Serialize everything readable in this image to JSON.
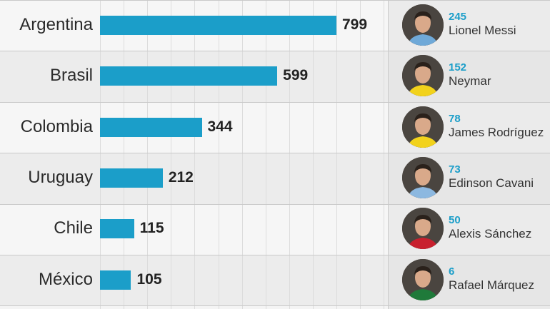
{
  "chart_data": {
    "type": "bar",
    "orientation": "horizontal",
    "categories": [
      "Argentina",
      "Brasil",
      "Colombia",
      "Uruguay",
      "Chile",
      "México"
    ],
    "values": [
      799,
      599,
      344,
      212,
      115,
      105
    ],
    "xlim": [
      0,
      1000
    ],
    "grid": true,
    "bar_color": "#1b9ec9",
    "players": [
      {
        "goals": "245",
        "name": "Lionel Messi",
        "shirt_color": "#6fa9d8"
      },
      {
        "goals": "152",
        "name": "Neymar",
        "shirt_color": "#f2d21b"
      },
      {
        "goals": "78",
        "name": "James Rodríguez",
        "shirt_color": "#f2d21b"
      },
      {
        "goals": "73",
        "name": "Edinson Cavani",
        "shirt_color": "#8cb8e0"
      },
      {
        "goals": "50",
        "name": "Alexis Sánchez",
        "shirt_color": "#c8202e"
      },
      {
        "goals": "6",
        "name": "Rafael Márquez",
        "shirt_color": "#1f7a3a"
      }
    ]
  }
}
